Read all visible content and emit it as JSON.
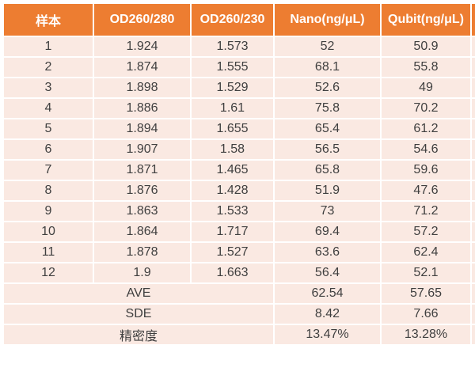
{
  "chart_data": {
    "type": "table",
    "columns": [
      "样本",
      "OD260/280",
      "OD260/230",
      "Nano(ng/μL)",
      "Qubit(ng/μL)"
    ],
    "rows": [
      [
        "1",
        "1.924",
        "1.573",
        "52",
        "50.9"
      ],
      [
        "2",
        "1.874",
        "1.555",
        "68.1",
        "55.8"
      ],
      [
        "3",
        "1.898",
        "1.529",
        "52.6",
        "49"
      ],
      [
        "4",
        "1.886",
        "1.61",
        "75.8",
        "70.2"
      ],
      [
        "5",
        "1.894",
        "1.655",
        "65.4",
        "61.2"
      ],
      [
        "6",
        "1.907",
        "1.58",
        "56.5",
        "54.6"
      ],
      [
        "7",
        "1.871",
        "1.465",
        "65.8",
        "59.6"
      ],
      [
        "8",
        "1.876",
        "1.428",
        "51.9",
        "47.6"
      ],
      [
        "9",
        "1.863",
        "1.533",
        "73",
        "71.2"
      ],
      [
        "10",
        "1.864",
        "1.717",
        "69.4",
        "57.2"
      ],
      [
        "11",
        "1.878",
        "1.527",
        "63.6",
        "62.4"
      ],
      [
        "12",
        "1.9",
        "1.663",
        "56.4",
        "52.1"
      ]
    ],
    "summary": [
      {
        "label": "AVE",
        "nano": "62.54",
        "qubit": "57.65"
      },
      {
        "label": "SDE",
        "nano": "8.42",
        "qubit": "7.66"
      },
      {
        "label": "精密度",
        "nano": "13.47%",
        "qubit": "13.28%"
      }
    ],
    "layout_hints": {
      "grid": "white 2px separators",
      "summary_label_span": "columns 1-3 merged",
      "header_style": "orange background, white bold text",
      "body_style": "uniform pale pink rows, centered text"
    }
  },
  "colors": {
    "header_bg": "#ED7D31",
    "header_text": "#FFFFFF",
    "row_bg": "#FAE9E2",
    "body_text": "#3F3F3F",
    "grid": "#FFFFFF"
  }
}
